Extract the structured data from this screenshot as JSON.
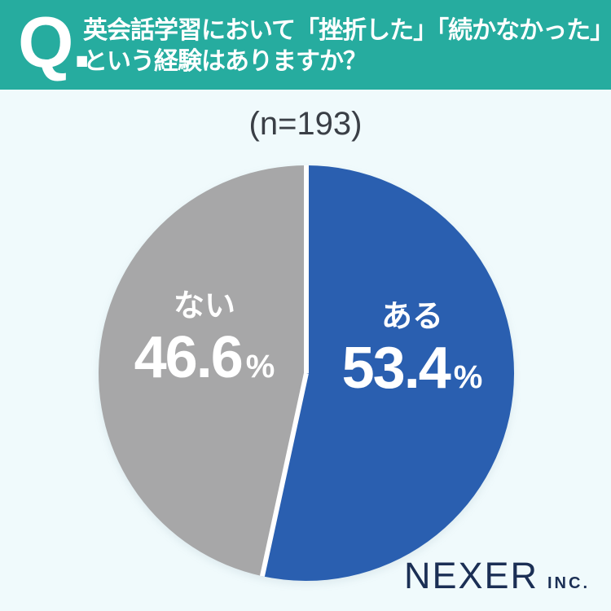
{
  "header": {
    "q_label": "Q.",
    "question_line1": "英会話学習において「挫折した」「続かなかった」",
    "question_line2": "という経験はありますか？",
    "banner_color": "#26AC9F",
    "text_color": "#FFFFFF"
  },
  "chart_data": {
    "type": "pie",
    "title": "(n=193)",
    "n": 193,
    "start_angle_deg": 0,
    "direction": "clockwise",
    "legend_position": "inside-slices",
    "divider_color": "#FFFFFF",
    "slices": [
      {
        "label": "ある",
        "value": 53.4,
        "value_text": "53.4",
        "unit": "%",
        "color": "#2A5FB0",
        "text_color": "#FFFFFF"
      },
      {
        "label": "ない",
        "value": 46.6,
        "value_text": "46.6",
        "unit": "%",
        "color": "#A7A7A8",
        "text_color": "#FFFFFF"
      }
    ]
  },
  "footer": {
    "brand": "NEXER",
    "brand_suffix": "INC.",
    "color": "#1B2F55"
  },
  "colors": {
    "background": "#F0FAFC",
    "n_label_color": "#3A3F46"
  }
}
